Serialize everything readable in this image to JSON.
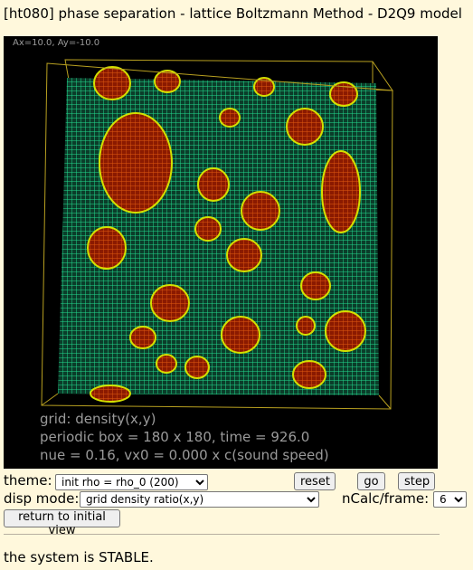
{
  "title": "[ht080] phase separation - lattice Boltzmann Method - D2Q9 model",
  "viewer": {
    "axis_readout": "Ax=10.0, Ay=-10.0",
    "info_lines": [
      "grid: density(x,y)",
      "periodic box = 180 x 180,  time = 926.0",
      "nue = 0.16,  vx0 = 0.000 x c(sound speed)"
    ],
    "colors": {
      "background": "#000000",
      "gas_grid": "#22d98c",
      "liquid_fill": "#8b1a00",
      "liquid_grid": "#e05a10",
      "interface": "#d4e000",
      "box_frame": "#b8a020"
    }
  },
  "controls": {
    "theme_label": "theme:",
    "theme_value": "init rho = rho_0 (200)",
    "reset_label": "reset",
    "go_label": "go",
    "step_label": "step",
    "disp_mode_label": "disp mode:",
    "disp_mode_value": "grid density ratio(x,y)",
    "ncalc_label": "nCalc/frame:",
    "ncalc_value": "6",
    "return_label": "return to initial view"
  },
  "status": "the system is STABLE."
}
